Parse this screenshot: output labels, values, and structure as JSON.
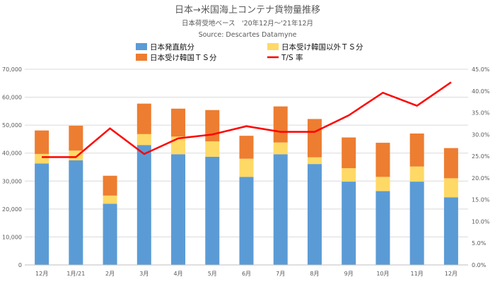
{
  "chart_data": {
    "type": "bar",
    "stacked": true,
    "title": "日本→米国海上コンテナ貨物量推移",
    "subtitle": "日本荷受地ベース　'20年12月～'21年12月",
    "source": "Source: Descartes Datamyne",
    "categories": [
      "12月",
      "1月/21",
      "2月",
      "3月",
      "4月",
      "5月",
      "6月",
      "7月",
      "8月",
      "9月",
      "10月",
      "11月",
      "12月"
    ],
    "series": [
      {
        "name": "日本発直航分",
        "color": "#5b9bd5",
        "axis": "left",
        "values": [
          36300,
          37400,
          21900,
          42900,
          39600,
          38700,
          31500,
          39600,
          36100,
          29800,
          26400,
          29800,
          24200
        ]
      },
      {
        "name": "日本受け韓国以外ＴＳ分",
        "color": "#ffd966",
        "axis": "left",
        "values": [
          3400,
          3500,
          2900,
          3900,
          6300,
          5500,
          6500,
          4200,
          2400,
          4800,
          5100,
          5400,
          6800
        ]
      },
      {
        "name": "日本受け韓国ＴＳ分",
        "color": "#ed7d31",
        "axis": "left",
        "values": [
          8400,
          8900,
          7100,
          10900,
          10000,
          11200,
          8200,
          12900,
          13700,
          11000,
          12200,
          11800,
          10800
        ]
      },
      {
        "name": "T/S 率",
        "color": "#ff0000",
        "type": "line",
        "axis": "right",
        "values": [
          24.8,
          24.8,
          31.4,
          25.5,
          29.1,
          30.0,
          31.9,
          30.6,
          30.6,
          34.4,
          39.6,
          36.6,
          42.0
        ]
      }
    ],
    "yleft": {
      "min": 0,
      "max": 70000,
      "ticks": [
        "0",
        "10,000",
        "20,000",
        "30,000",
        "40,000",
        "50,000",
        "60,000",
        "70,000"
      ]
    },
    "yright": {
      "min": 0,
      "max": 45,
      "ticks": [
        "0.0%",
        "5.0%",
        "10.0%",
        "15.0%",
        "20.0%",
        "25.0%",
        "30.0%",
        "35.0%",
        "40.0%",
        "45.0%"
      ]
    },
    "grid": true,
    "legend_position": "top"
  }
}
